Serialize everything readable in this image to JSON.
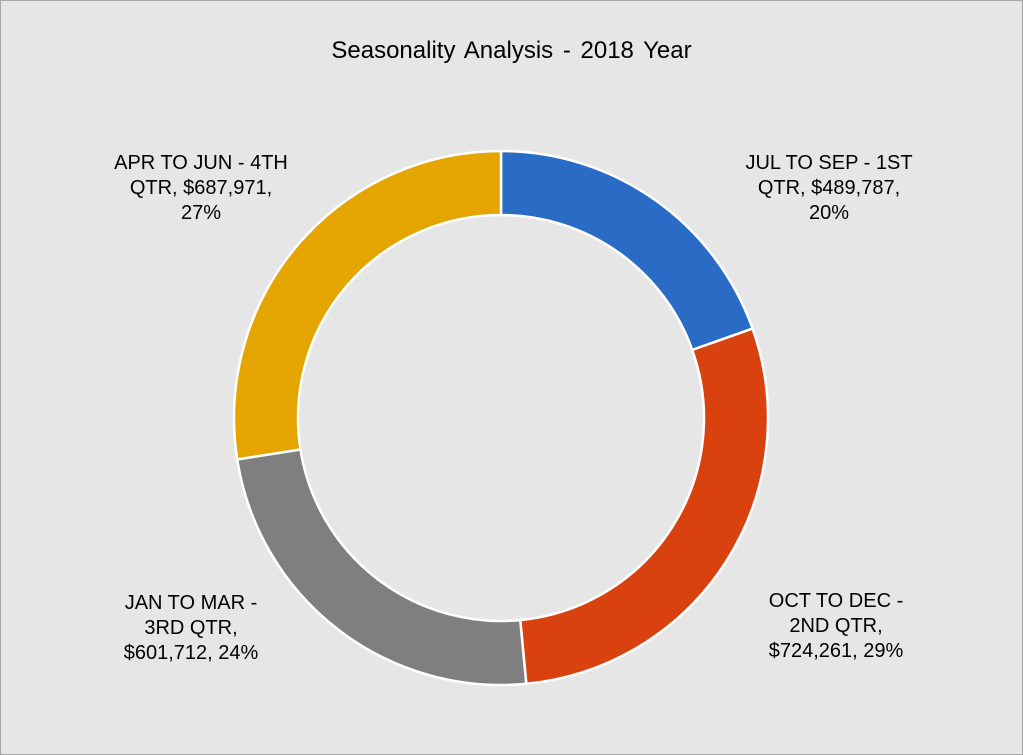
{
  "chart_data": {
    "type": "pie",
    "style": "donut",
    "title": "Seasonality Analysis  - 2018 Year",
    "categories": [
      "JUL TO SEP  - 1ST QTR",
      "OCT TO DEC - 2ND QTR",
      "JAN TO MAR - 3RD QTR",
      "APR TO JUN  - 4TH QTR"
    ],
    "values": [
      489787,
      724261,
      601712,
      687971
    ],
    "percentages": [
      20,
      29,
      24,
      27
    ],
    "colors": [
      "#2a6bc5",
      "#d9410f",
      "#7f7f7f",
      "#e5a501"
    ],
    "data_labels": [
      "JUL TO SEP  - 1ST\nQTR, $489,787,\n20%",
      "OCT TO DEC -\n2ND QTR,\n$724,261, 29%",
      "JAN TO MAR -\n3RD QTR,\n$601,712, 24%",
      "APR TO JUN  - 4TH\nQTR, $687,971,\n27%"
    ],
    "legend": "none",
    "start_angle": "12 o'clock, clockwise"
  }
}
